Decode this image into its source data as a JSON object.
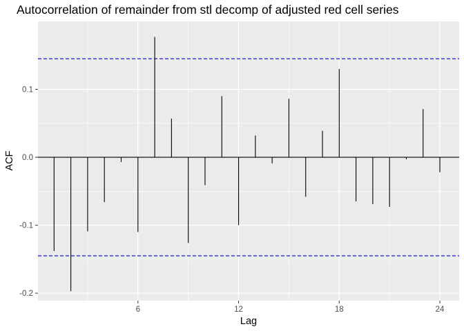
{
  "chart_data": {
    "type": "bar",
    "title": "Autocorrelation of remainder from stl decomp of adjusted red cell series",
    "xlabel": "Lag",
    "ylabel": "ACF",
    "x": [
      1,
      2,
      3,
      4,
      5,
      6,
      7,
      8,
      9,
      10,
      11,
      12,
      13,
      14,
      15,
      16,
      17,
      18,
      19,
      20,
      21,
      22,
      23,
      24
    ],
    "values": [
      -0.138,
      -0.197,
      -0.109,
      -0.066,
      -0.007,
      -0.11,
      0.177,
      0.057,
      -0.126,
      -0.041,
      0.09,
      -0.1,
      0.032,
      -0.009,
      0.086,
      -0.058,
      0.039,
      0.13,
      -0.065,
      -0.069,
      -0.073,
      -0.003,
      0.071,
      -0.022
    ],
    "xlim": [
      0.04,
      25.15
    ],
    "ylim": [
      -0.211,
      0.2
    ],
    "xticks": [
      6,
      12,
      18,
      24
    ],
    "xtick_labels": [
      "6",
      "12",
      "18",
      "24"
    ],
    "yticks": [
      -0.2,
      -0.1,
      0.0,
      0.1
    ],
    "ytick_labels": [
      "-0.2",
      "-0.1",
      "0.0",
      "0.1"
    ],
    "confidence_bounds": [
      0.145,
      -0.145
    ],
    "grid": true,
    "colors": {
      "panel": "#ebebeb",
      "grid_major": "#ffffff",
      "bars": "#000000",
      "zero_line": "#000000",
      "confidence": "#0000ff"
    }
  }
}
